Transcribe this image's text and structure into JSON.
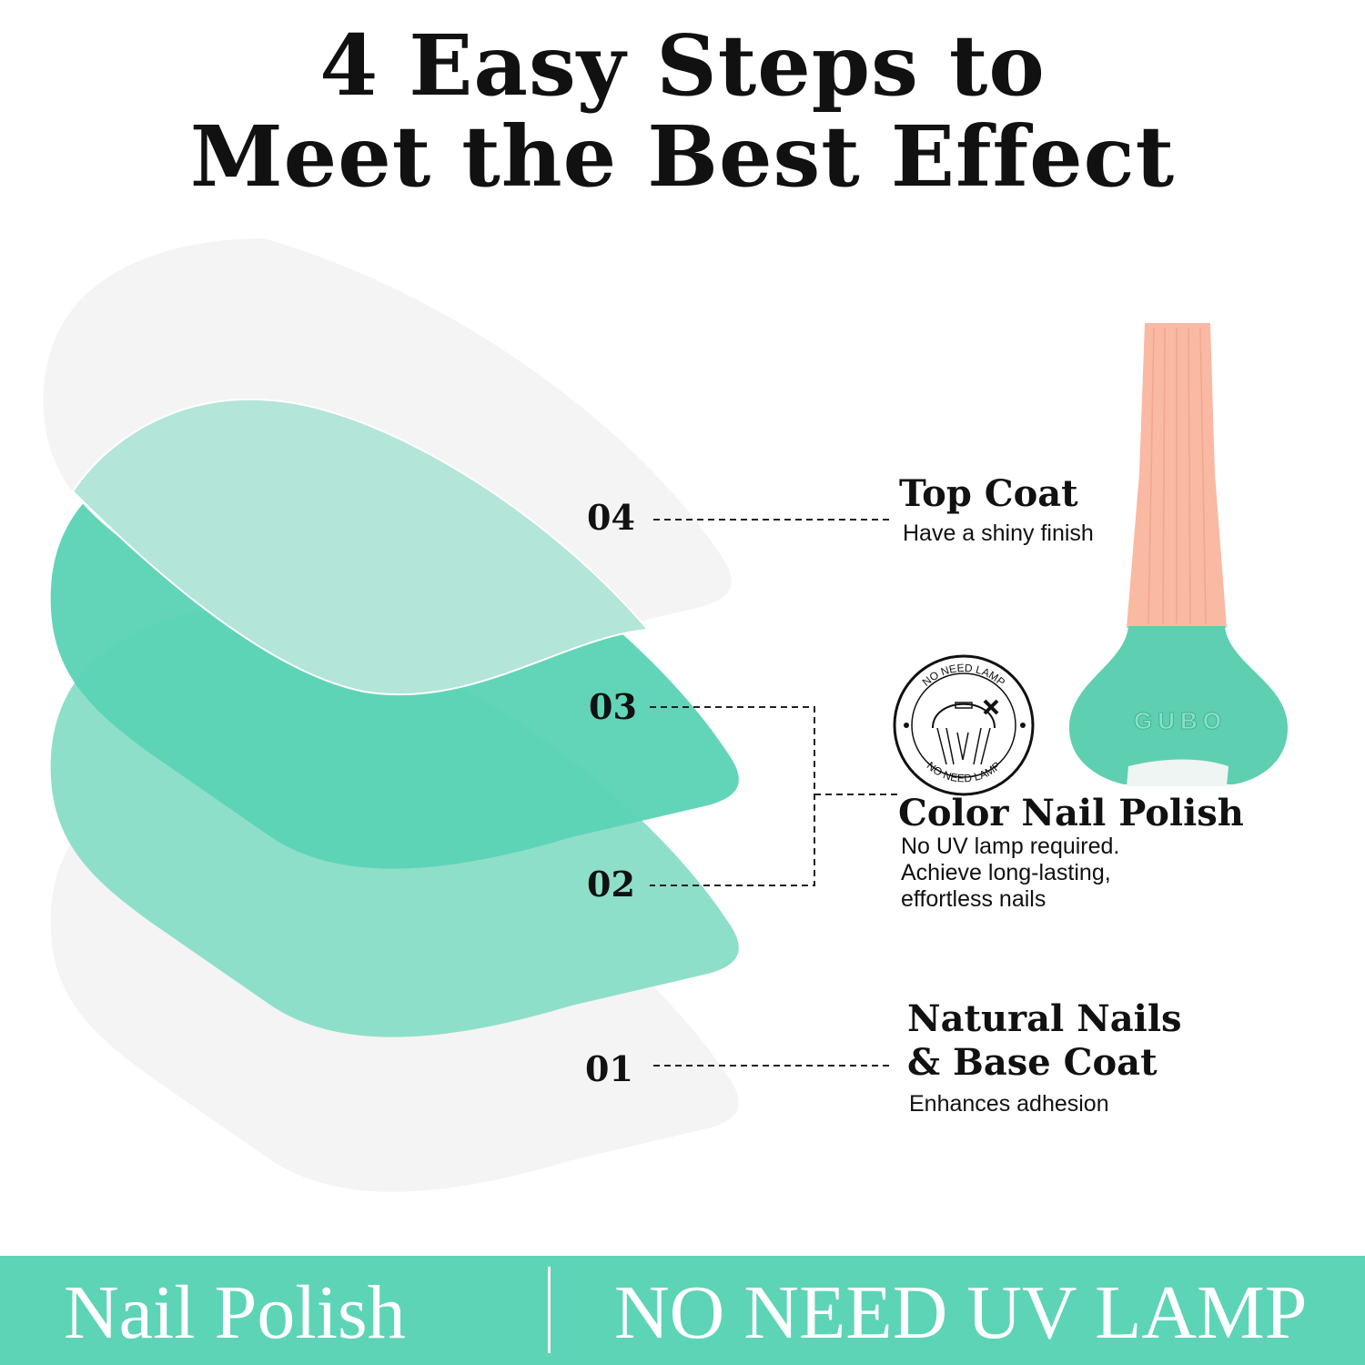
{
  "title": {
    "line1": "4 Easy Steps to",
    "line2": "Meet the Best Effect"
  },
  "steps": [
    {
      "number": "04",
      "heading": "Top Coat",
      "description": "Have a shiny finish"
    },
    {
      "number": "03"
    },
    {
      "number": "02",
      "heading": "Color Nail Polish",
      "description": [
        "No UV lamp required.",
        "Achieve long-lasting,",
        "effortless nails"
      ]
    },
    {
      "number": "01",
      "heading": [
        "Natural Nails",
        "& Base Coat"
      ],
      "description": "Enhances adhesion"
    }
  ],
  "badge": {
    "text_top": "NO NEED LAMP",
    "text_bottom": "NO NEED LAMP",
    "icon": "no-uv-lamp-icon"
  },
  "bottle": {
    "brand": "GUBO"
  },
  "banner": {
    "left": "Nail Polish",
    "right": "NO NEED UV LAMP"
  },
  "colors": {
    "mint": "#5dd4b6",
    "mint_light": "#8edfca",
    "mint_pale": "#b3e5d8",
    "gray_layer": "#f4f4f4",
    "cap": "#f9b9a3"
  }
}
